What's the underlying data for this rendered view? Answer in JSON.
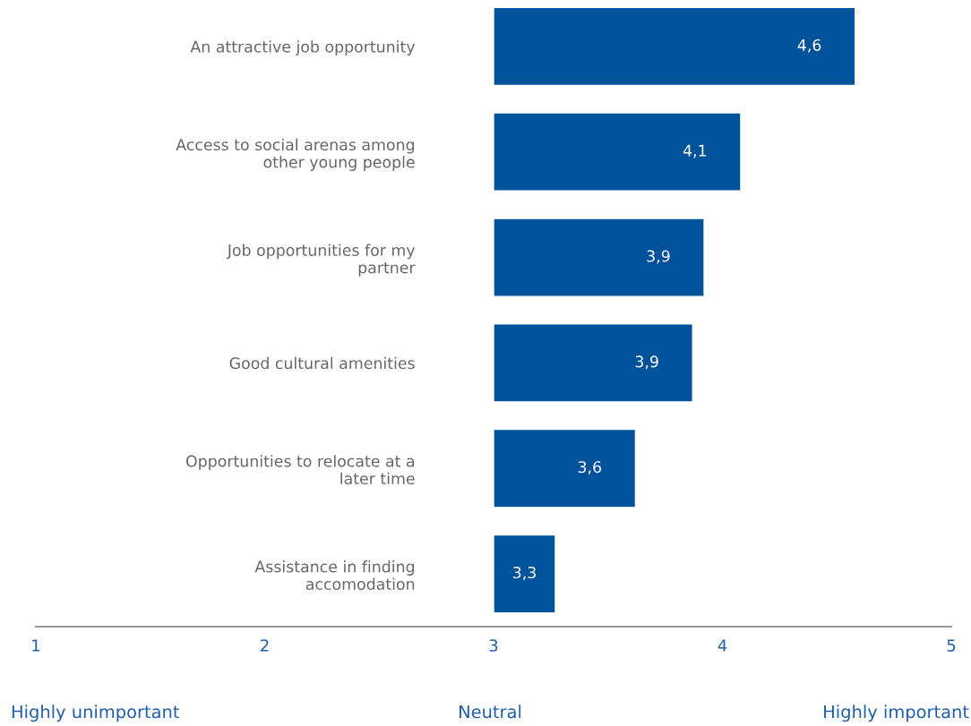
{
  "chart_data": {
    "type": "bar",
    "orientation": "horizontal",
    "categories": [
      "An attractive job opportunity",
      "Access to social arenas among\nother young people",
      "Job opportunities for my\npartner",
      "Good cultural amenities",
      "Opportunities to relocate at a\nlater time",
      "Assistance in finding\naccomodation"
    ],
    "base": [
      3,
      3,
      3,
      3,
      3,
      3
    ],
    "values": [
      1.58,
      1.08,
      0.92,
      0.87,
      0.62,
      0.27
    ],
    "value_labels": [
      "4,6",
      "4,1",
      "3,9",
      "3,9",
      "3,6",
      "3,3"
    ],
    "color": "#00529b",
    "xlim": [
      1,
      5
    ],
    "xticks": [
      1,
      2,
      3,
      4,
      5
    ],
    "grid": false,
    "legend": false,
    "annotations": [
      "Highly unimportant",
      "Neutral",
      "Highly important"
    ]
  }
}
